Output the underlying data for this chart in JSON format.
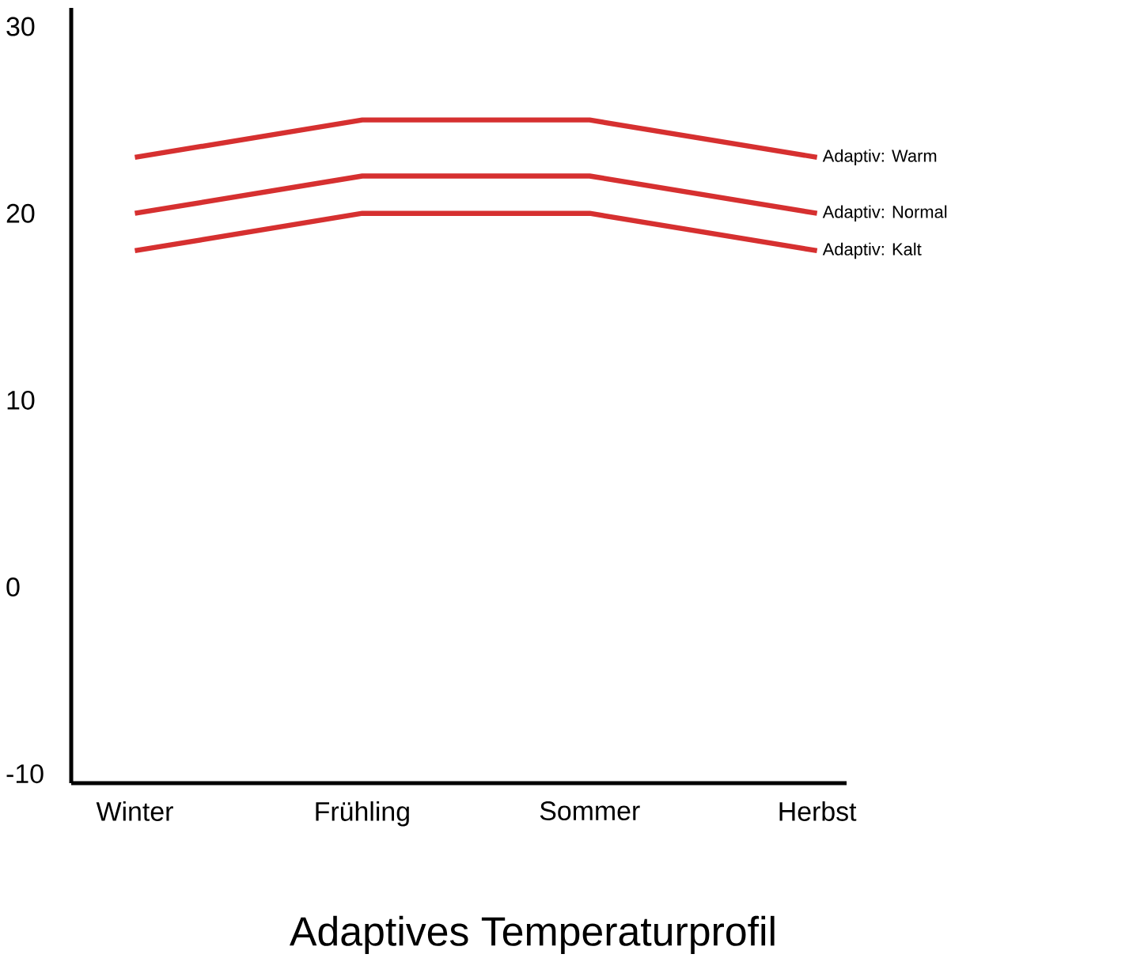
{
  "chart_data": {
    "type": "line",
    "title": "Adaptives Temperaturprofil",
    "categories": [
      "Winter",
      "Frühling",
      "Sommer",
      "Herbst"
    ],
    "series": [
      {
        "name": "Adaptiv: Warm",
        "color": "#d63030",
        "values": [
          23,
          25,
          25,
          23
        ]
      },
      {
        "name": "Adaptiv: Normal",
        "color": "#d63030",
        "values": [
          20,
          22,
          22,
          20
        ]
      },
      {
        "name": "Adaptiv: Kalt",
        "color": "#d63030",
        "values": [
          18,
          20,
          20,
          18
        ]
      }
    ],
    "ylim": [
      -10.5,
      31
    ],
    "yticks": [
      -10,
      0,
      10,
      20,
      30
    ],
    "grid": false,
    "legend": false,
    "marker": "none",
    "line_style": "solid"
  }
}
